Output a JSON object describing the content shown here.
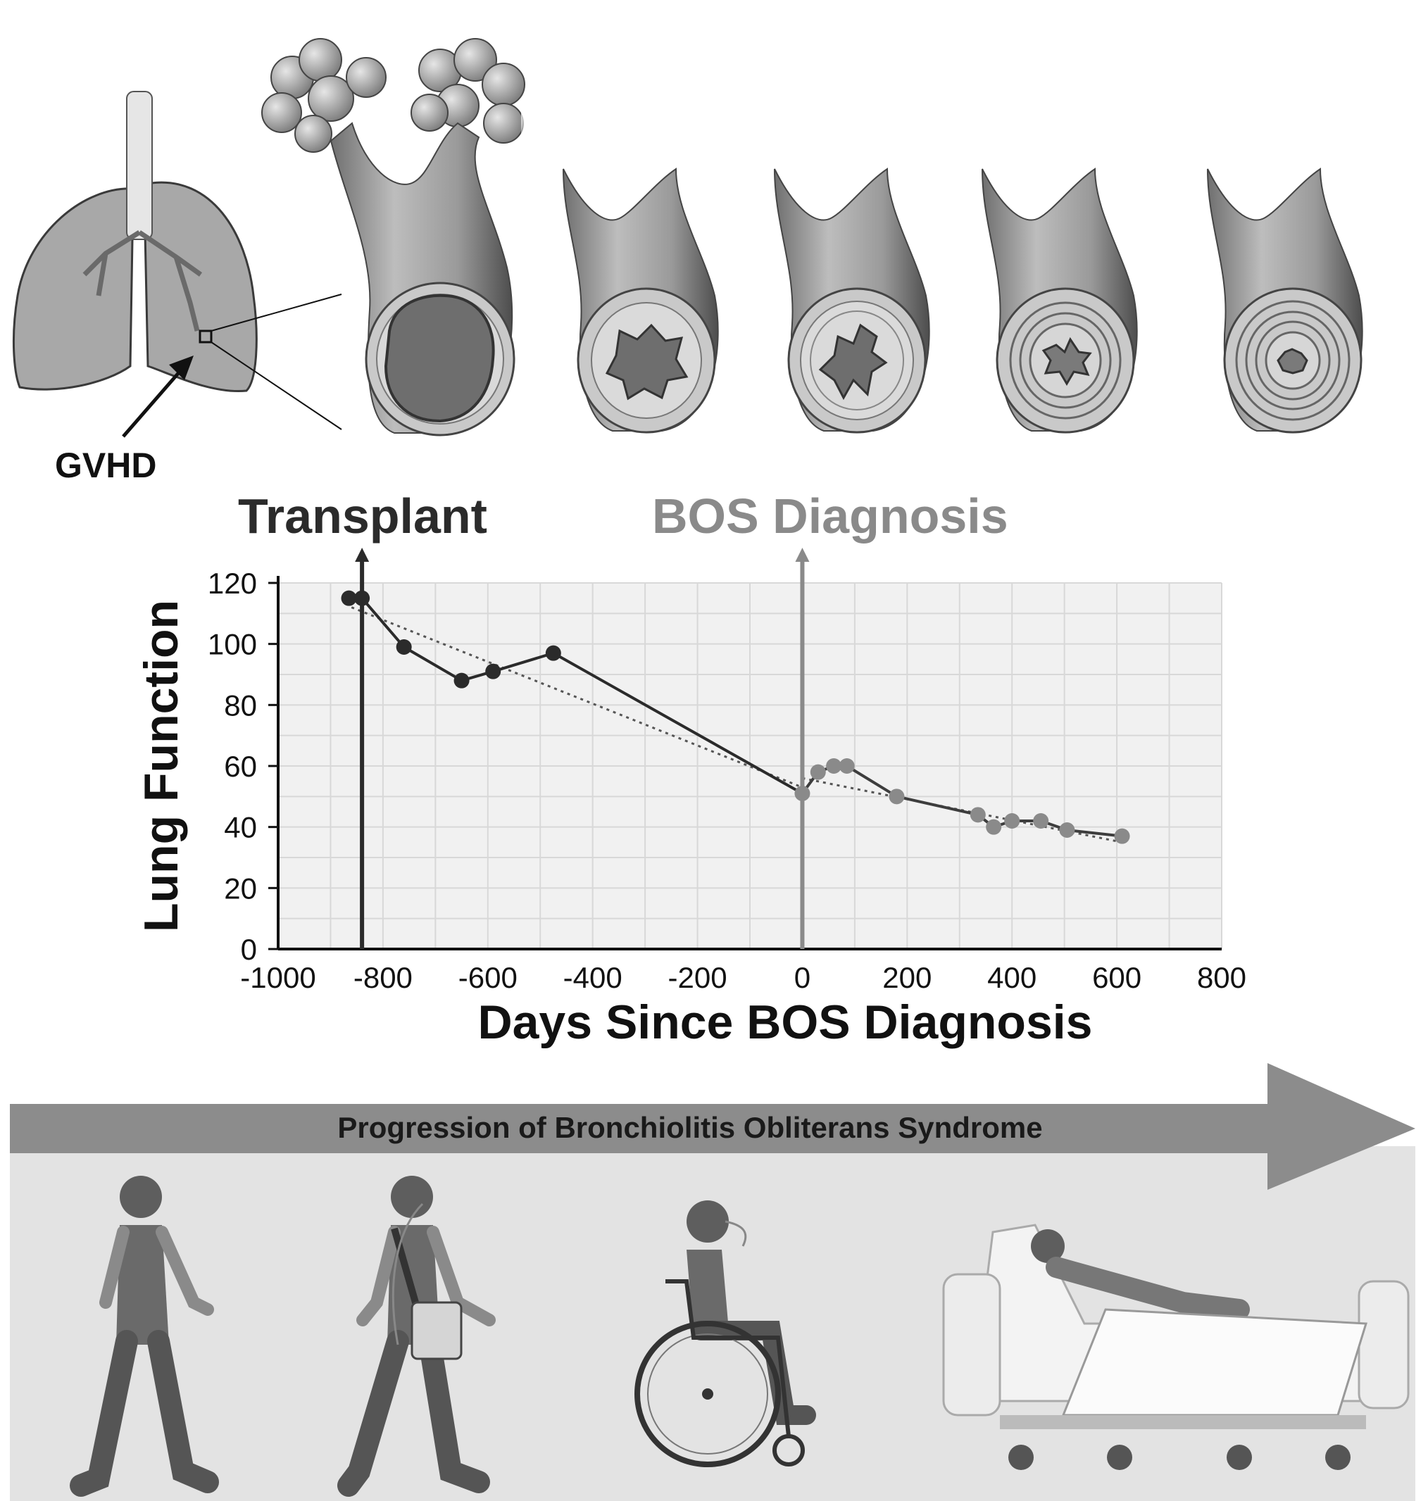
{
  "labels": {
    "gvhd": "GVHD",
    "transplant": "Transplant",
    "bos_diagnosis": "BOS Diagnosis",
    "banner": "Progression of Bronchiolitis Obliterans Syndrome"
  },
  "colors": {
    "dark": "#2b2b2b",
    "gray_marker": "#8a8a8a",
    "banner": "#8c8c8c",
    "panel": "#e3e3e3"
  },
  "chart_data": {
    "type": "line",
    "xlabel": "Days Since BOS Diagnosis",
    "ylabel": "Lung Function",
    "xlim": [
      -1000,
      800
    ],
    "ylim": [
      0,
      120
    ],
    "xticks": [
      -1000,
      -800,
      -600,
      -400,
      -200,
      0,
      200,
      400,
      600,
      800
    ],
    "yticks": [
      0,
      20,
      40,
      60,
      80,
      100,
      120
    ],
    "grid": true,
    "markers": [
      {
        "label": "Transplant",
        "x": -840
      },
      {
        "label": "BOS Diagnosis",
        "x": 0
      }
    ],
    "series": [
      {
        "points": [
          [
            -865,
            115
          ],
          [
            -840,
            115
          ],
          [
            -760,
            99
          ],
          [
            -650,
            88
          ],
          [
            -590,
            91
          ],
          [
            -475,
            97
          ],
          [
            0,
            51
          ],
          [
            30,
            58
          ],
          [
            60,
            60
          ],
          [
            85,
            60
          ],
          [
            180,
            50
          ],
          [
            335,
            44
          ],
          [
            365,
            40
          ],
          [
            400,
            42
          ],
          [
            455,
            42
          ],
          [
            505,
            39
          ],
          [
            610,
            37
          ]
        ]
      }
    ],
    "trendlines": [
      {
        "from": [
          -860,
          112
        ],
        "to": [
          0,
          53
        ]
      },
      {
        "from": [
          0,
          56
        ],
        "to": [
          610,
          35
        ]
      }
    ]
  },
  "stages": [
    "walking",
    "walking-with-oxygen",
    "wheelchair-with-oxygen",
    "hospital-bed"
  ]
}
